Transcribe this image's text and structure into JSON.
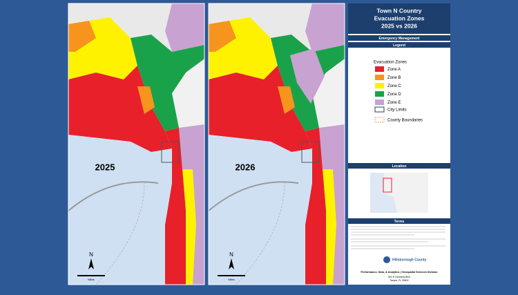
{
  "header": {
    "title": "Town N Country",
    "subtitle_1": "Evacuation Zones",
    "subtitle_2": "2025 vs 2026",
    "department": "Emergency Management"
  },
  "legend": {
    "title": "Legend",
    "heading": "Evacuation Zones",
    "zones": [
      {
        "label": "Zone A",
        "color": "#e8202a"
      },
      {
        "label": "Zone B",
        "color": "#f7941d"
      },
      {
        "label": "Zone C",
        "color": "#fff200"
      },
      {
        "label": "Zone D",
        "color": "#1aa24a"
      },
      {
        "label": "Zone E",
        "color": "#c8a2d0"
      }
    ],
    "city_limits": "City Limits",
    "county_boundaries": "County Boundaries"
  },
  "location": {
    "title": "Location"
  },
  "terms": {
    "title": "Terms"
  },
  "maps": [
    {
      "label": "2025",
      "north": "N",
      "scale": "Miles"
    },
    {
      "label": "2026",
      "north": "N",
      "scale": "Miles"
    }
  ],
  "footer": {
    "logo": "Hillsborough County",
    "division": "Performance, Data, & Analytics | Geospatial Services Division",
    "address_1": "601 E Kennedy Blvd",
    "address_2": "Tampa, FL 33602"
  }
}
